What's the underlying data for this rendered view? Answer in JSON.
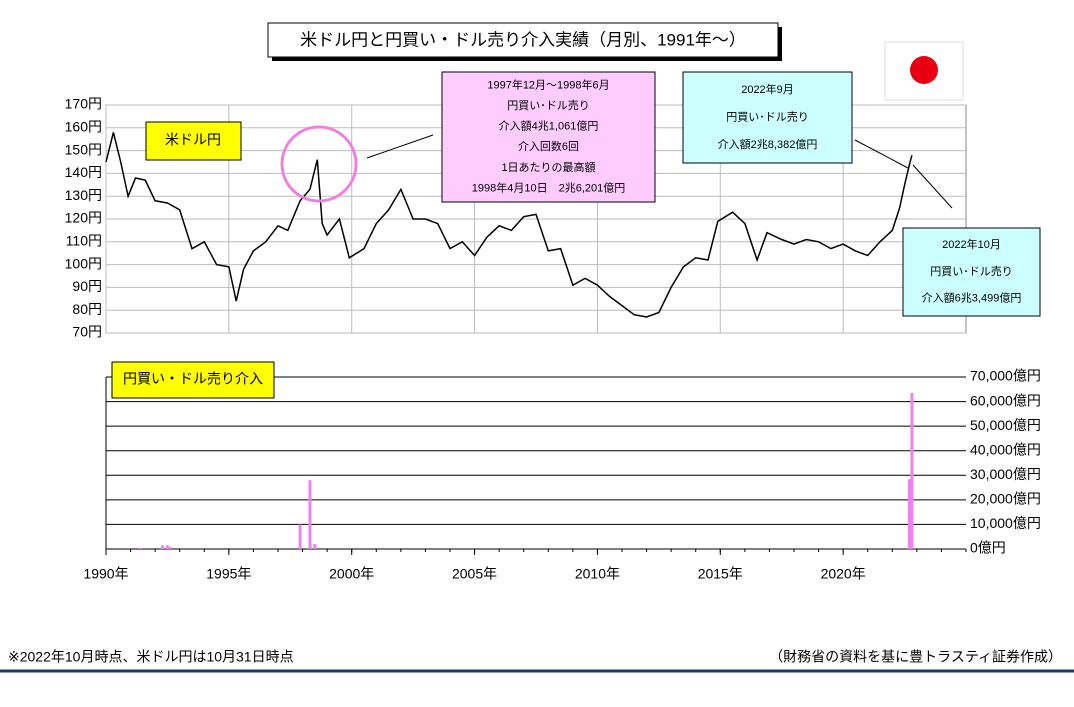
{
  "chart_data": [
    {
      "type": "line",
      "title": "米ドル円と円買い・ドル売り介入実績（月別、1991年～）",
      "xlim": [
        1990,
        2025
      ],
      "ylim": [
        70,
        170
      ],
      "yticks": [
        {
          "value": 70,
          "label": "70円"
        },
        {
          "value": 80,
          "label": "80円"
        },
        {
          "value": 90,
          "label": "90円"
        },
        {
          "value": 100,
          "label": "100円"
        },
        {
          "value": 110,
          "label": "110円"
        },
        {
          "value": 120,
          "label": "120円"
        },
        {
          "value": 130,
          "label": "130円"
        },
        {
          "value": 140,
          "label": "140円"
        },
        {
          "value": 150,
          "label": "150円"
        },
        {
          "value": 160,
          "label": "160円"
        },
        {
          "value": 170,
          "label": "170円"
        }
      ],
      "grid": true,
      "x": [
        1990.0,
        1990.3,
        1990.6,
        1990.9,
        1991.2,
        1991.6,
        1992.0,
        1992.5,
        1993.0,
        1993.5,
        1994.0,
        1994.5,
        1995.0,
        1995.3,
        1995.6,
        1996.0,
        1996.5,
        1997.0,
        1997.4,
        1997.9,
        1998.3,
        1998.6,
        1998.8,
        1999.0,
        1999.5,
        1999.9,
        2000.5,
        2001.0,
        2001.5,
        2002.0,
        2002.5,
        2003.0,
        2003.5,
        2004.0,
        2004.5,
        2005.0,
        2005.5,
        2006.0,
        2006.5,
        2007.0,
        2007.5,
        2008.0,
        2008.5,
        2009.0,
        2009.5,
        2010.0,
        2010.5,
        2011.0,
        2011.5,
        2012.0,
        2012.5,
        2013.0,
        2013.5,
        2014.0,
        2014.5,
        2014.9,
        2015.5,
        2016.0,
        2016.5,
        2016.9,
        2017.5,
        2018.0,
        2018.5,
        2019.0,
        2019.5,
        2020.0,
        2020.5,
        2021.0,
        2021.5,
        2022.0,
        2022.3,
        2022.5,
        2022.7,
        2022.8
      ],
      "series": [
        {
          "name": "米ドル円",
          "color": "#000000",
          "values": [
            145,
            158,
            145,
            130,
            138,
            137,
            128,
            127,
            124,
            107,
            110,
            100,
            99,
            84,
            98,
            106,
            110,
            117,
            115,
            128,
            133,
            146,
            118,
            113,
            120,
            103,
            107,
            118,
            124,
            133,
            120,
            120,
            118,
            107,
            110,
            104,
            112,
            117,
            115,
            121,
            122,
            106,
            107,
            91,
            94,
            91,
            86,
            82,
            78,
            77,
            79,
            90,
            99,
            103,
            102,
            119,
            123,
            118,
            102,
            114,
            111,
            109,
            111,
            110,
            107,
            109,
            106,
            104,
            110,
            115,
            125,
            135,
            144,
            148
          ]
        }
      ],
      "annotations": [
        {
          "lines": [
            "1997年12月～1998年6月",
            "円買い･ドル売り",
            "介入額4兆1,061億円",
            "介入回数6回",
            "1日あたりの最高額",
            "1998年4月10日　2兆6,201億円"
          ]
        },
        {
          "lines": [
            "2022年9月",
            "円買い･ドル売り",
            "介入額2兆8,382億円"
          ]
        },
        {
          "lines": [
            "2022年10月",
            "円買い･ドル売り",
            "介入額6兆3,499億円"
          ]
        }
      ]
    },
    {
      "type": "bar",
      "xlim": [
        1990,
        2025
      ],
      "xticks": [
        {
          "value": 1990,
          "label": "1990年"
        },
        {
          "value": 1995,
          "label": "1995年"
        },
        {
          "value": 2000,
          "label": "2000年"
        },
        {
          "value": 2005,
          "label": "2005年"
        },
        {
          "value": 2010,
          "label": "2010年"
        },
        {
          "value": 2015,
          "label": "2015年"
        },
        {
          "value": 2020,
          "label": "2020年"
        }
      ],
      "y2lim": [
        0,
        70000
      ],
      "y2ticks": [
        {
          "value": 0,
          "label": "0億円"
        },
        {
          "value": 10000,
          "label": "10,000億円"
        },
        {
          "value": 20000,
          "label": "20,000億円"
        },
        {
          "value": 30000,
          "label": "30,000億円"
        },
        {
          "value": 40000,
          "label": "40,000億円"
        },
        {
          "value": 50000,
          "label": "50,000億円"
        },
        {
          "value": 60000,
          "label": "60,000億円"
        },
        {
          "value": 70000,
          "label": "70,000億円"
        }
      ],
      "grid": true,
      "x": [
        1991.4,
        1992.3,
        1992.5,
        1992.6,
        1997.9,
        1998.3,
        1998.5,
        2022.7,
        2022.8
      ],
      "series": [
        {
          "name": "円買い・ドル売り介入",
          "color": "#ee82ee",
          "axis": "y2",
          "values": [
            500,
            1500,
            1500,
            800,
            10000,
            28000,
            2000,
            28382,
            63499
          ]
        }
      ]
    }
  ],
  "footnote": "※2022年10月時点、米ドル円は10月31日時点",
  "source": "（財務省の資料を基に豊トラスティ証券作成）"
}
